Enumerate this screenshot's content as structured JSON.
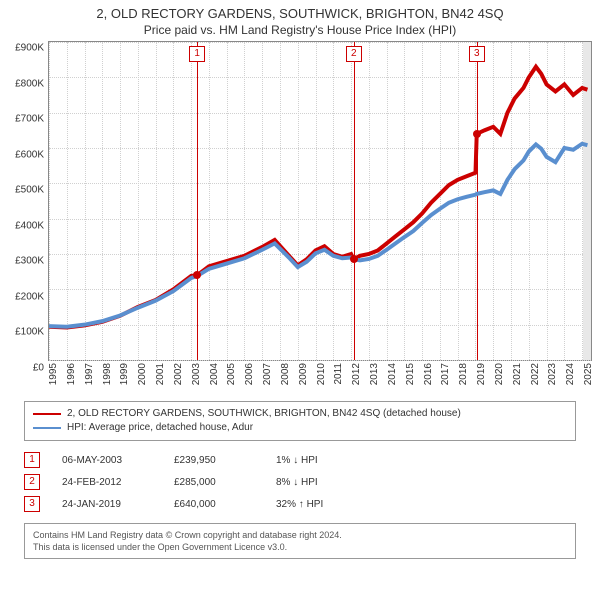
{
  "title_line1": "2, OLD RECTORY GARDENS, SOUTHWICK, BRIGHTON, BN42 4SQ",
  "title_line2": "Price paid vs. HM Land Registry's House Price Index (HPI)",
  "chart": {
    "type": "line",
    "background_color": "#ffffff",
    "grid_color": "#d0d0d0",
    "grey_end_band": true,
    "x_range": [
      1995,
      2025.5
    ],
    "y_range": [
      0,
      900000
    ],
    "y_ticks": [
      0,
      100000,
      200000,
      300000,
      400000,
      500000,
      600000,
      700000,
      800000,
      900000
    ],
    "y_tick_labels": [
      "£0",
      "£100K",
      "£200K",
      "£300K",
      "£400K",
      "£500K",
      "£600K",
      "£700K",
      "£800K",
      "£900K"
    ],
    "x_ticks": [
      1995,
      1996,
      1997,
      1998,
      1999,
      2000,
      2001,
      2002,
      2003,
      2004,
      2005,
      2006,
      2007,
      2008,
      2009,
      2010,
      2011,
      2012,
      2013,
      2014,
      2015,
      2016,
      2017,
      2018,
      2019,
      2020,
      2021,
      2022,
      2023,
      2024,
      2025
    ],
    "label_fontsize": 10,
    "line_width": 1.3,
    "series": [
      {
        "id": "price_paid",
        "color": "#cc0000",
        "points": [
          [
            1995.0,
            94000
          ],
          [
            1996.0,
            92000
          ],
          [
            1997.0,
            98000
          ],
          [
            1998.0,
            108000
          ],
          [
            1999.0,
            125000
          ],
          [
            2000.0,
            150000
          ],
          [
            2001.0,
            170000
          ],
          [
            2002.0,
            200000
          ],
          [
            2003.0,
            238000
          ],
          [
            2003.34,
            239950
          ],
          [
            2004.0,
            265000
          ],
          [
            2005.0,
            280000
          ],
          [
            2006.0,
            295000
          ],
          [
            2007.0,
            320000
          ],
          [
            2007.7,
            340000
          ],
          [
            2008.5,
            295000
          ],
          [
            2009.0,
            268000
          ],
          [
            2009.5,
            285000
          ],
          [
            2010.0,
            310000
          ],
          [
            2010.5,
            322000
          ],
          [
            2011.0,
            300000
          ],
          [
            2011.5,
            292000
          ],
          [
            2012.0,
            300000
          ],
          [
            2012.15,
            285000
          ],
          [
            2012.5,
            295000
          ],
          [
            2013.0,
            300000
          ],
          [
            2013.5,
            310000
          ],
          [
            2014.0,
            330000
          ],
          [
            2014.5,
            350000
          ],
          [
            2015.0,
            370000
          ],
          [
            2015.5,
            390000
          ],
          [
            2016.0,
            415000
          ],
          [
            2016.5,
            445000
          ],
          [
            2017.0,
            470000
          ],
          [
            2017.5,
            495000
          ],
          [
            2018.0,
            510000
          ],
          [
            2018.5,
            520000
          ],
          [
            2019.0,
            530000
          ],
          [
            2019.07,
            640000
          ],
          [
            2019.5,
            650000
          ],
          [
            2020.0,
            660000
          ],
          [
            2020.4,
            640000
          ],
          [
            2020.8,
            700000
          ],
          [
            2021.2,
            740000
          ],
          [
            2021.7,
            770000
          ],
          [
            2022.0,
            800000
          ],
          [
            2022.4,
            830000
          ],
          [
            2022.7,
            810000
          ],
          [
            2023.0,
            780000
          ],
          [
            2023.5,
            760000
          ],
          [
            2024.0,
            780000
          ],
          [
            2024.5,
            750000
          ],
          [
            2025.0,
            770000
          ],
          [
            2025.3,
            765000
          ]
        ]
      },
      {
        "id": "hpi",
        "color": "#5a8fcf",
        "points": [
          [
            1995.0,
            96000
          ],
          [
            1996.0,
            94000
          ],
          [
            1997.0,
            100000
          ],
          [
            1998.0,
            110000
          ],
          [
            1999.0,
            126000
          ],
          [
            2000.0,
            148000
          ],
          [
            2001.0,
            168000
          ],
          [
            2002.0,
            195000
          ],
          [
            2003.0,
            232000
          ],
          [
            2003.34,
            238000
          ],
          [
            2004.0,
            258000
          ],
          [
            2005.0,
            273000
          ],
          [
            2006.0,
            288000
          ],
          [
            2007.0,
            312000
          ],
          [
            2007.7,
            330000
          ],
          [
            2008.5,
            290000
          ],
          [
            2009.0,
            263000
          ],
          [
            2009.5,
            278000
          ],
          [
            2010.0,
            302000
          ],
          [
            2010.5,
            312000
          ],
          [
            2011.0,
            295000
          ],
          [
            2011.5,
            288000
          ],
          [
            2012.0,
            290000
          ],
          [
            2012.15,
            285000
          ],
          [
            2012.5,
            282000
          ],
          [
            2013.0,
            286000
          ],
          [
            2013.5,
            295000
          ],
          [
            2014.0,
            312000
          ],
          [
            2014.5,
            330000
          ],
          [
            2015.0,
            348000
          ],
          [
            2015.5,
            365000
          ],
          [
            2016.0,
            388000
          ],
          [
            2016.5,
            410000
          ],
          [
            2017.0,
            428000
          ],
          [
            2017.5,
            445000
          ],
          [
            2018.0,
            455000
          ],
          [
            2018.5,
            462000
          ],
          [
            2019.0,
            468000
          ],
          [
            2019.07,
            470000
          ],
          [
            2019.5,
            475000
          ],
          [
            2020.0,
            480000
          ],
          [
            2020.4,
            470000
          ],
          [
            2020.8,
            510000
          ],
          [
            2021.2,
            540000
          ],
          [
            2021.7,
            565000
          ],
          [
            2022.0,
            590000
          ],
          [
            2022.4,
            610000
          ],
          [
            2022.7,
            598000
          ],
          [
            2023.0,
            575000
          ],
          [
            2023.5,
            560000
          ],
          [
            2024.0,
            600000
          ],
          [
            2024.5,
            595000
          ],
          [
            2025.0,
            612000
          ],
          [
            2025.3,
            608000
          ]
        ]
      }
    ],
    "markers": [
      {
        "n": "1",
        "year": 2003.34,
        "value": 239950
      },
      {
        "n": "2",
        "year": 2012.15,
        "value": 285000
      },
      {
        "n": "3",
        "year": 2019.07,
        "value": 640000
      }
    ]
  },
  "legend": {
    "items": [
      {
        "color": "#cc0000",
        "label": "2, OLD RECTORY GARDENS, SOUTHWICK, BRIGHTON, BN42 4SQ (detached house)"
      },
      {
        "color": "#5a8fcf",
        "label": "HPI: Average price, detached house, Adur"
      }
    ]
  },
  "sales": [
    {
      "n": "1",
      "date": "06-MAY-2003",
      "price": "£239,950",
      "delta": "1% ↓ HPI"
    },
    {
      "n": "2",
      "date": "24-FEB-2012",
      "price": "£285,000",
      "delta": "8% ↓ HPI"
    },
    {
      "n": "3",
      "date": "24-JAN-2019",
      "price": "£640,000",
      "delta": "32% ↑ HPI"
    }
  ],
  "footer": {
    "line1": "Contains HM Land Registry data © Crown copyright and database right 2024.",
    "line2": "This data is licensed under the Open Government Licence v3.0."
  }
}
